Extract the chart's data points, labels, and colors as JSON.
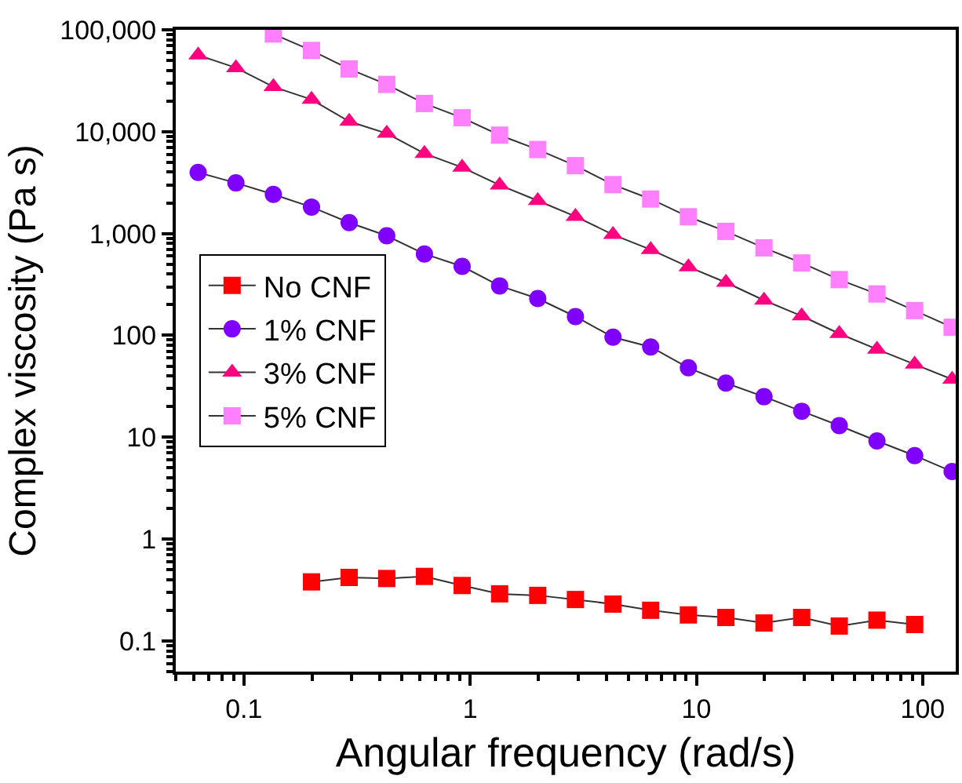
{
  "chart_data": {
    "type": "line",
    "xlabel": "Angular frequency (rad/s)",
    "ylabel": "Complex viscosity (Pa s)",
    "log": "xy",
    "legend": "left",
    "line_style": "solid",
    "xlim": [
      0.05,
      140
    ],
    "xticks": [
      0.1,
      1,
      10,
      100
    ],
    "ylim": [
      0.05,
      100000
    ],
    "yticks": [
      0.1,
      1,
      10,
      100,
      {
        "value": 1000,
        "label": "1,000"
      },
      {
        "value": 10000,
        "label": "10,000"
      },
      {
        "value": 100000,
        "label": "100,000"
      }
    ],
    "series": [
      {
        "name": "No CNF",
        "color": "#ff0000",
        "marker": "square",
        "x": [
          0.199,
          0.292,
          0.428,
          0.628,
          0.922,
          1.35,
          1.99,
          2.92,
          4.28,
          6.28,
          9.22,
          13.5,
          19.9,
          29.2,
          42.8,
          62.8,
          92.2
        ],
        "values": [
          0.38,
          0.42,
          0.41,
          0.43,
          0.35,
          0.29,
          0.28,
          0.255,
          0.23,
          0.2,
          0.18,
          0.17,
          0.15,
          0.17,
          0.14,
          0.16,
          0.145
        ]
      },
      {
        "name": "1% CNF",
        "color": "#8000ff",
        "marker": "circle",
        "x": [
          0.0628,
          0.0922,
          0.135,
          0.199,
          0.292,
          0.428,
          0.628,
          0.922,
          1.35,
          1.99,
          2.92,
          4.28,
          6.28,
          9.22,
          13.5,
          19.9,
          29.2,
          42.8,
          62.8,
          92.2,
          135
        ],
        "values": [
          3980,
          3140,
          2420,
          1820,
          1280,
          950,
          630,
          476,
          306,
          230,
          153,
          96,
          77,
          48,
          34,
          25,
          18,
          13,
          9.2,
          6.6,
          4.6
        ]
      },
      {
        "name": "3% CNF",
        "color": "#ff0080",
        "marker": "triangle",
        "x": [
          0.0628,
          0.0922,
          0.135,
          0.199,
          0.292,
          0.428,
          0.628,
          0.922,
          1.35,
          1.99,
          2.92,
          4.28,
          6.28,
          9.22,
          13.5,
          19.9,
          29.2,
          42.8,
          62.8,
          92.2,
          135
        ],
        "values": [
          56400,
          42400,
          27600,
          20700,
          12600,
          9600,
          6100,
          4460,
          2990,
          2100,
          1470,
          975,
          695,
          470,
          331,
          221,
          155,
          104,
          73,
          52,
          37
        ]
      },
      {
        "name": "5% CNF",
        "color": "#ff80ff",
        "marker": "square",
        "x": [
          0.135,
          0.199,
          0.292,
          0.428,
          0.628,
          0.922,
          1.35,
          1.99,
          2.92,
          4.28,
          6.28,
          9.22,
          13.5,
          19.9,
          29.2,
          42.8,
          62.8,
          92.2,
          135
        ],
        "values": [
          91000,
          62700,
          41300,
          29100,
          18900,
          13700,
          9250,
          6680,
          4640,
          3020,
          2180,
          1460,
          1050,
          723,
          514,
          353,
          255,
          175,
          120
        ]
      }
    ]
  }
}
